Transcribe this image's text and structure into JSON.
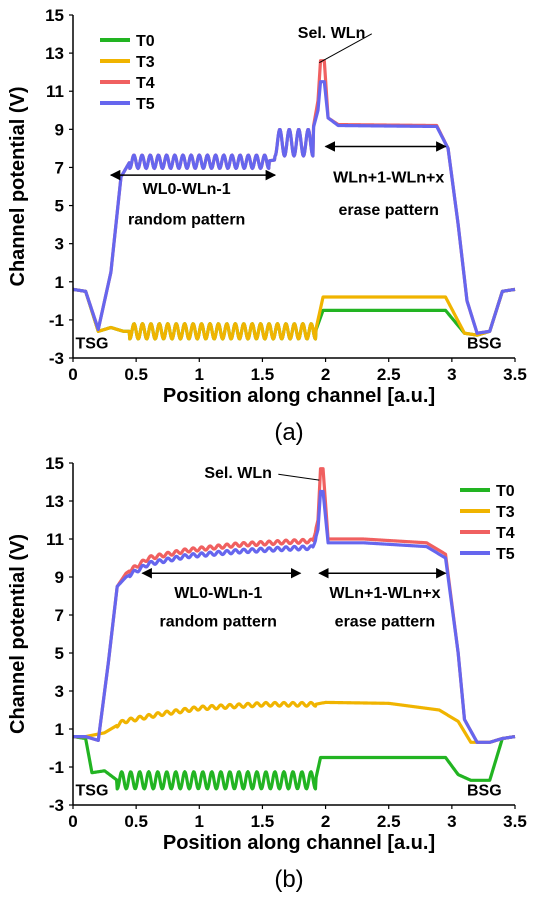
{
  "chart_data": [
    {
      "type": "line",
      "panel_label": "(a)",
      "xlabel": "Position along channel [a.u.]",
      "ylabel": "Channel potential (V)",
      "xlim": [
        0,
        3.5
      ],
      "ylim": [
        -3,
        15
      ],
      "xticks": [
        "0",
        "0.5",
        "1",
        "1.5",
        "2",
        "2.5",
        "3",
        "3.5"
      ],
      "yticks": [
        "-3",
        "-1",
        "1",
        "3",
        "5",
        "7",
        "9",
        "11",
        "13",
        "15"
      ],
      "legend_position": "top-left",
      "series": [
        {
          "name": "T0",
          "color": "#22b422",
          "points": [
            [
              0,
              0.6
            ],
            [
              0.1,
              0.5
            ],
            [
              0.2,
              -1.6
            ],
            [
              0.3,
              -1.4
            ],
            [
              0.4,
              -1.6
            ],
            [
              1.92,
              -1.6
            ],
            [
              1.98,
              -0.5
            ],
            [
              2.95,
              -0.5
            ],
            [
              3.1,
              -1.7
            ],
            [
              3.2,
              -1.8
            ],
            [
              3.3,
              -1.6
            ],
            [
              3.4,
              0.5
            ],
            [
              3.5,
              0.6
            ]
          ],
          "oscillation": [
            [
              0.45,
              1.92,
              -1.6,
              0.4,
              22
            ]
          ]
        },
        {
          "name": "T3",
          "color": "#f0b400",
          "points": [
            [
              0,
              0.6
            ],
            [
              0.1,
              0.5
            ],
            [
              0.2,
              -1.6
            ],
            [
              0.3,
              -1.4
            ],
            [
              0.4,
              -1.6
            ],
            [
              1.92,
              -1.6
            ],
            [
              1.98,
              0.2
            ],
            [
              2.95,
              0.2
            ],
            [
              3.1,
              -1.7
            ],
            [
              3.2,
              -1.8
            ],
            [
              3.3,
              -1.6
            ],
            [
              3.4,
              0.5
            ],
            [
              3.5,
              0.6
            ]
          ],
          "oscillation": [
            [
              0.45,
              1.92,
              -1.6,
              0.4,
              22
            ]
          ]
        },
        {
          "name": "T4",
          "color": "#f06060",
          "points": [
            [
              0,
              0.6
            ],
            [
              0.1,
              0.5
            ],
            [
              0.2,
              -1.5
            ],
            [
              0.3,
              1.5
            ],
            [
              0.38,
              6.5
            ],
            [
              0.45,
              7.3
            ],
            [
              1.5,
              7.3
            ],
            [
              1.72,
              7.5
            ],
            [
              1.85,
              8.5
            ],
            [
              1.9,
              9.0
            ],
            [
              1.94,
              10.5
            ],
            [
              1.96,
              12.6
            ],
            [
              1.99,
              12.6
            ],
            [
              2.02,
              9.6
            ],
            [
              2.1,
              9.25
            ],
            [
              2.88,
              9.2
            ],
            [
              2.97,
              8.0
            ],
            [
              3.05,
              4.0
            ],
            [
              3.12,
              0.0
            ],
            [
              3.2,
              -1.7
            ],
            [
              3.3,
              -1.6
            ],
            [
              3.4,
              0.5
            ],
            [
              3.5,
              0.6
            ]
          ],
          "oscillation": [
            [
              0.45,
              1.55,
              7.3,
              0.35,
              17
            ],
            [
              1.6,
              1.9,
              8.3,
              0.7,
              4
            ]
          ]
        },
        {
          "name": "T5",
          "color": "#6666ee",
          "points": [
            [
              0,
              0.6
            ],
            [
              0.1,
              0.5
            ],
            [
              0.2,
              -1.5
            ],
            [
              0.3,
              1.5
            ],
            [
              0.38,
              6.5
            ],
            [
              0.45,
              7.3
            ],
            [
              1.5,
              7.3
            ],
            [
              1.72,
              7.5
            ],
            [
              1.85,
              8.5
            ],
            [
              1.9,
              9.0
            ],
            [
              1.94,
              10.0
            ],
            [
              1.96,
              11.5
            ],
            [
              1.99,
              11.5
            ],
            [
              2.02,
              9.6
            ],
            [
              2.1,
              9.2
            ],
            [
              2.88,
              9.15
            ],
            [
              2.97,
              8.0
            ],
            [
              3.05,
              4.0
            ],
            [
              3.12,
              0.0
            ],
            [
              3.2,
              -1.7
            ],
            [
              3.3,
              -1.6
            ],
            [
              3.4,
              0.5
            ],
            [
              3.5,
              0.6
            ]
          ],
          "oscillation": [
            [
              0.45,
              1.55,
              7.3,
              0.35,
              17
            ],
            [
              1.6,
              1.9,
              8.3,
              0.7,
              4
            ]
          ]
        }
      ],
      "annotations": [
        {
          "text": "Sel. WLn",
          "x": 1.78,
          "y": 13.8
        },
        {
          "text": "WL0-WLn-1",
          "x": 0.9,
          "y": 5.6
        },
        {
          "text": "random pattern",
          "x": 0.9,
          "y": 4.0
        },
        {
          "text": "WLn+1-WLn+x",
          "x": 2.5,
          "y": 6.2
        },
        {
          "text": "erase pattern",
          "x": 2.5,
          "y": 4.5
        },
        {
          "text": "TSG",
          "x": 0.02,
          "y": -2.5
        },
        {
          "text": "BSG",
          "x": 3.12,
          "y": -2.5
        }
      ],
      "arrows": [
        {
          "x1": 0.3,
          "x2": 1.6,
          "y": 6.6
        },
        {
          "x1": 2.0,
          "x2": 2.95,
          "y": 8.1
        }
      ]
    },
    {
      "type": "line",
      "panel_label": "(b)",
      "xlabel": "Position along channel [a.u.]",
      "ylabel": "Channel potential (V)",
      "xlim": [
        0,
        3.5
      ],
      "ylim": [
        -3,
        15
      ],
      "xticks": [
        "0",
        "0.5",
        "1",
        "1.5",
        "2",
        "2.5",
        "3",
        "3.5"
      ],
      "yticks": [
        "-3",
        "-1",
        "1",
        "3",
        "5",
        "7",
        "9",
        "11",
        "13",
        "15"
      ],
      "legend_position": "top-right",
      "series": [
        {
          "name": "T0",
          "color": "#22b422",
          "points": [
            [
              0,
              0.6
            ],
            [
              0.1,
              0.5
            ],
            [
              0.15,
              -1.3
            ],
            [
              0.25,
              -1.2
            ],
            [
              0.35,
              -1.7
            ],
            [
              1.92,
              -1.7
            ],
            [
              1.96,
              -0.5
            ],
            [
              2.95,
              -0.5
            ],
            [
              3.05,
              -1.4
            ],
            [
              3.15,
              -1.7
            ],
            [
              3.3,
              -1.7
            ],
            [
              3.4,
              0.5
            ],
            [
              3.5,
              0.6
            ]
          ],
          "oscillation": [
            [
              0.35,
              1.92,
              -1.7,
              0.45,
              22
            ]
          ]
        },
        {
          "name": "T3",
          "color": "#f0b400",
          "points": [
            [
              0,
              0.6
            ],
            [
              0.1,
              0.6
            ],
            [
              0.25,
              0.8
            ],
            [
              0.4,
              1.4
            ],
            [
              0.7,
              1.8
            ],
            [
              1.0,
              2.1
            ],
            [
              1.5,
              2.3
            ],
            [
              1.92,
              2.3
            ],
            [
              2.0,
              2.4
            ],
            [
              2.5,
              2.35
            ],
            [
              2.9,
              2.0
            ],
            [
              3.05,
              1.4
            ],
            [
              3.15,
              0.3
            ],
            [
              3.3,
              0.3
            ],
            [
              3.4,
              0.5
            ],
            [
              3.5,
              0.6
            ]
          ],
          "oscillation": [
            [
              0.35,
              1.92,
              0,
              0.12,
              22
            ]
          ]
        },
        {
          "name": "T4",
          "color": "#f06060",
          "points": [
            [
              0,
              0.6
            ],
            [
              0.1,
              0.6
            ],
            [
              0.2,
              0.4
            ],
            [
              0.28,
              4.5
            ],
            [
              0.35,
              8.5
            ],
            [
              0.42,
              9.2
            ],
            [
              0.6,
              10.0
            ],
            [
              0.9,
              10.4
            ],
            [
              1.3,
              10.7
            ],
            [
              1.7,
              10.85
            ],
            [
              1.9,
              10.9
            ],
            [
              1.94,
              12.0
            ],
            [
              1.96,
              14.7
            ],
            [
              1.98,
              14.7
            ],
            [
              2.02,
              11.0
            ],
            [
              2.3,
              11.0
            ],
            [
              2.8,
              10.8
            ],
            [
              2.95,
              10.2
            ],
            [
              3.05,
              5.0
            ],
            [
              3.1,
              1.5
            ],
            [
              3.2,
              0.3
            ],
            [
              3.3,
              0.3
            ],
            [
              3.4,
              0.5
            ],
            [
              3.5,
              0.6
            ]
          ],
          "oscillation": [
            [
              0.45,
              1.92,
              0,
              0.12,
              22
            ]
          ]
        },
        {
          "name": "T5",
          "color": "#6666ee",
          "points": [
            [
              0,
              0.6
            ],
            [
              0.1,
              0.6
            ],
            [
              0.2,
              0.4
            ],
            [
              0.28,
              4.5
            ],
            [
              0.35,
              8.5
            ],
            [
              0.42,
              9.0
            ],
            [
              0.6,
              9.7
            ],
            [
              0.9,
              10.1
            ],
            [
              1.3,
              10.35
            ],
            [
              1.7,
              10.5
            ],
            [
              1.9,
              10.55
            ],
            [
              1.94,
              11.5
            ],
            [
              1.96,
              13.5
            ],
            [
              1.98,
              13.5
            ],
            [
              2.02,
              10.8
            ],
            [
              2.3,
              10.8
            ],
            [
              2.8,
              10.6
            ],
            [
              2.95,
              10.0
            ],
            [
              3.05,
              5.0
            ],
            [
              3.1,
              1.5
            ],
            [
              3.2,
              0.3
            ],
            [
              3.3,
              0.3
            ],
            [
              3.4,
              0.5
            ],
            [
              3.5,
              0.6
            ]
          ],
          "oscillation": [
            [
              0.45,
              1.92,
              0,
              0.12,
              22
            ]
          ]
        }
      ],
      "annotations": [
        {
          "text": "Sel. WLn",
          "x": 1.04,
          "y": 14.2
        },
        {
          "text": "WL0-WLn-1",
          "x": 1.15,
          "y": 7.9
        },
        {
          "text": "random pattern",
          "x": 1.15,
          "y": 6.4
        },
        {
          "text": "WLn+1-WLn+x",
          "x": 2.47,
          "y": 7.9
        },
        {
          "text": "erase pattern",
          "x": 2.47,
          "y": 6.4
        },
        {
          "text": "TSG",
          "x": 0.02,
          "y": -2.5
        },
        {
          "text": "BSG",
          "x": 3.12,
          "y": -2.5
        }
      ],
      "arrows": [
        {
          "x1": 0.55,
          "x2": 1.8,
          "y": 9.2
        },
        {
          "x1": 1.95,
          "x2": 2.95,
          "y": 9.2
        }
      ]
    }
  ]
}
